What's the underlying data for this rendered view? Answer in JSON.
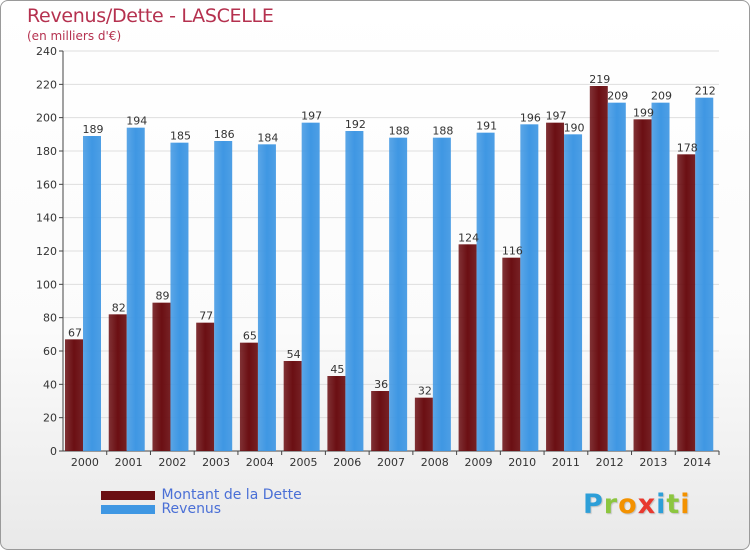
{
  "header": {
    "title": "Revenus/Dette - LASCELLE",
    "subtitle": "(en milliers d'€)"
  },
  "legend": {
    "items": [
      {
        "label": "Montant de la Dette",
        "color": "#6b0f13"
      },
      {
        "label": "Revenus",
        "color": "#3f97e3"
      }
    ]
  },
  "brand": {
    "letters": [
      {
        "ch": "P",
        "color": "#2d9fd8"
      },
      {
        "ch": "r",
        "color": "#8cc63f"
      },
      {
        "ch": "o",
        "color": "#f39200"
      },
      {
        "ch": "x",
        "color": "#e8392f"
      },
      {
        "ch": "i",
        "color": "#2d9fd8"
      },
      {
        "ch": "t",
        "color": "#8cc63f"
      },
      {
        "ch": "i",
        "color": "#f39200"
      }
    ]
  },
  "chart_data": {
    "type": "bar",
    "categories": [
      "2000",
      "2001",
      "2002",
      "2003",
      "2004",
      "2005",
      "2006",
      "2007",
      "2008",
      "2009",
      "2010",
      "2011",
      "2012",
      "2013",
      "2014"
    ],
    "series": [
      {
        "name": "Montant de la Dette",
        "color": "#6b0f13",
        "values": [
          67,
          82,
          89,
          77,
          65,
          54,
          45,
          36,
          32,
          124,
          116,
          197,
          219,
          199,
          178
        ]
      },
      {
        "name": "Revenus",
        "color": "#3f97e3",
        "values": [
          189,
          194,
          185,
          186,
          184,
          197,
          192,
          188,
          188,
          191,
          196,
          190,
          209,
          209,
          212
        ]
      }
    ],
    "title": "Revenus/Dette - LASCELLE",
    "subtitle": "(en milliers d'€)",
    "xlabel": "",
    "ylabel": "",
    "ylim": [
      0,
      240
    ],
    "yticks": [
      0,
      20,
      40,
      60,
      80,
      100,
      120,
      140,
      160,
      180,
      200,
      220,
      240
    ],
    "grid": true,
    "legend_position": "bottom-left"
  }
}
